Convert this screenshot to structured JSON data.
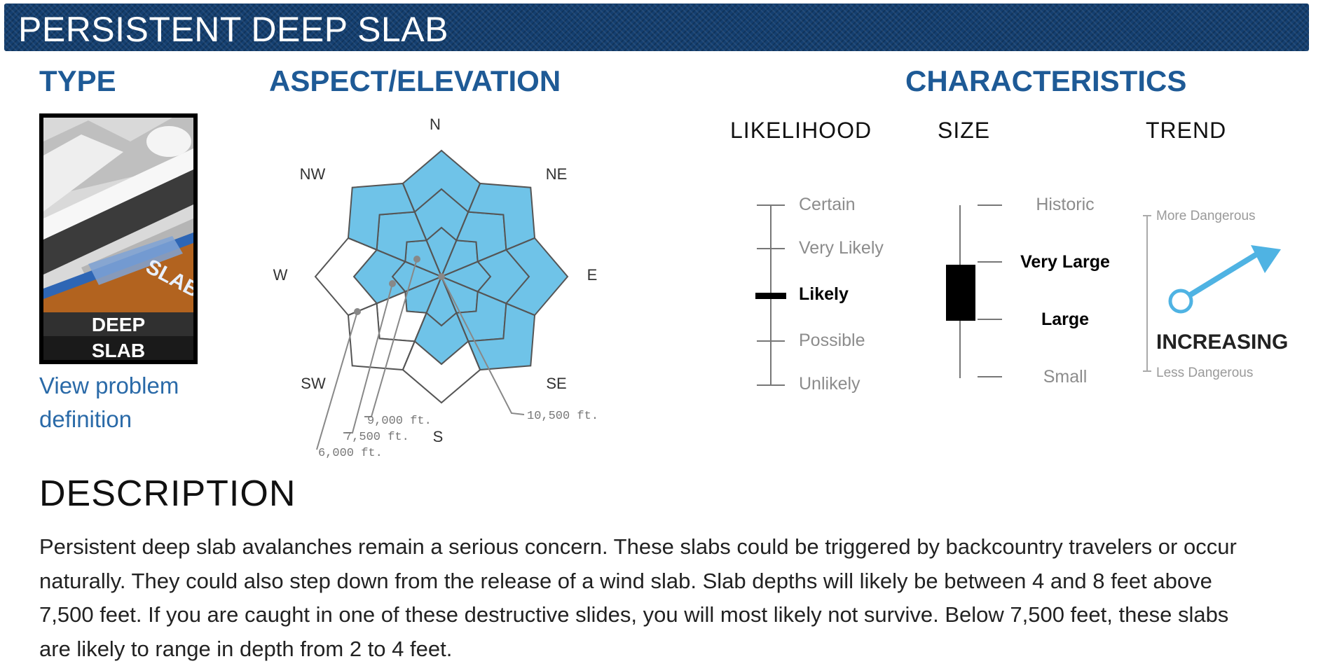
{
  "header": {
    "title": "PERSISTENT DEEP SLAB"
  },
  "type_section": {
    "heading": "TYPE",
    "icon_slab_text": "SLAB",
    "icon_line1": "DEEP",
    "icon_line2": "SLAB",
    "link_line1": "View problem",
    "link_line2": "definition"
  },
  "aspect_section": {
    "heading": "ASPECT/ELEVATION",
    "directions": {
      "n": "N",
      "ne": "NE",
      "e": "E",
      "se": "SE",
      "s": "S",
      "sw": "SW",
      "w": "W",
      "nw": "NW"
    },
    "elevations": {
      "e1": "10,500 ft.",
      "e2": "9,000 ft.",
      "e3": "7,500 ft.",
      "e4": "6,000 ft."
    },
    "fill_color": "#6fc3e8"
  },
  "characteristics": {
    "heading": "CHARACTERISTICS",
    "likelihood": {
      "label": "LIKELIHOOD",
      "levels": [
        "Certain",
        "Very Likely",
        "Likely",
        "Possible",
        "Unlikely"
      ],
      "selected": "Likely"
    },
    "size": {
      "label": "SIZE",
      "levels": [
        "Historic",
        "Very Large",
        "Large",
        "Small"
      ],
      "selected_range": [
        "Large",
        "Very Large"
      ]
    },
    "trend": {
      "label": "TREND",
      "top": "More Dangerous",
      "bottom": "Less Dangerous",
      "value": "INCREASING",
      "arrow_color": "#4fb3e3"
    }
  },
  "description": {
    "heading": "DESCRIPTION",
    "line1": "Persistent deep slab avalanches remain a serious concern. These slabs could be triggered by backcountry travelers or occur",
    "line2": "naturally. They could also step down from the release of a wind slab. Slab depths will likely be between 4 and 8 feet above",
    "line3": "7,500 feet. If you are caught in one of these destructive slides, you will most likely not survive. Below 7,500 feet, these slabs",
    "line4": "are likely to range in depth from 2 to 4 feet."
  }
}
